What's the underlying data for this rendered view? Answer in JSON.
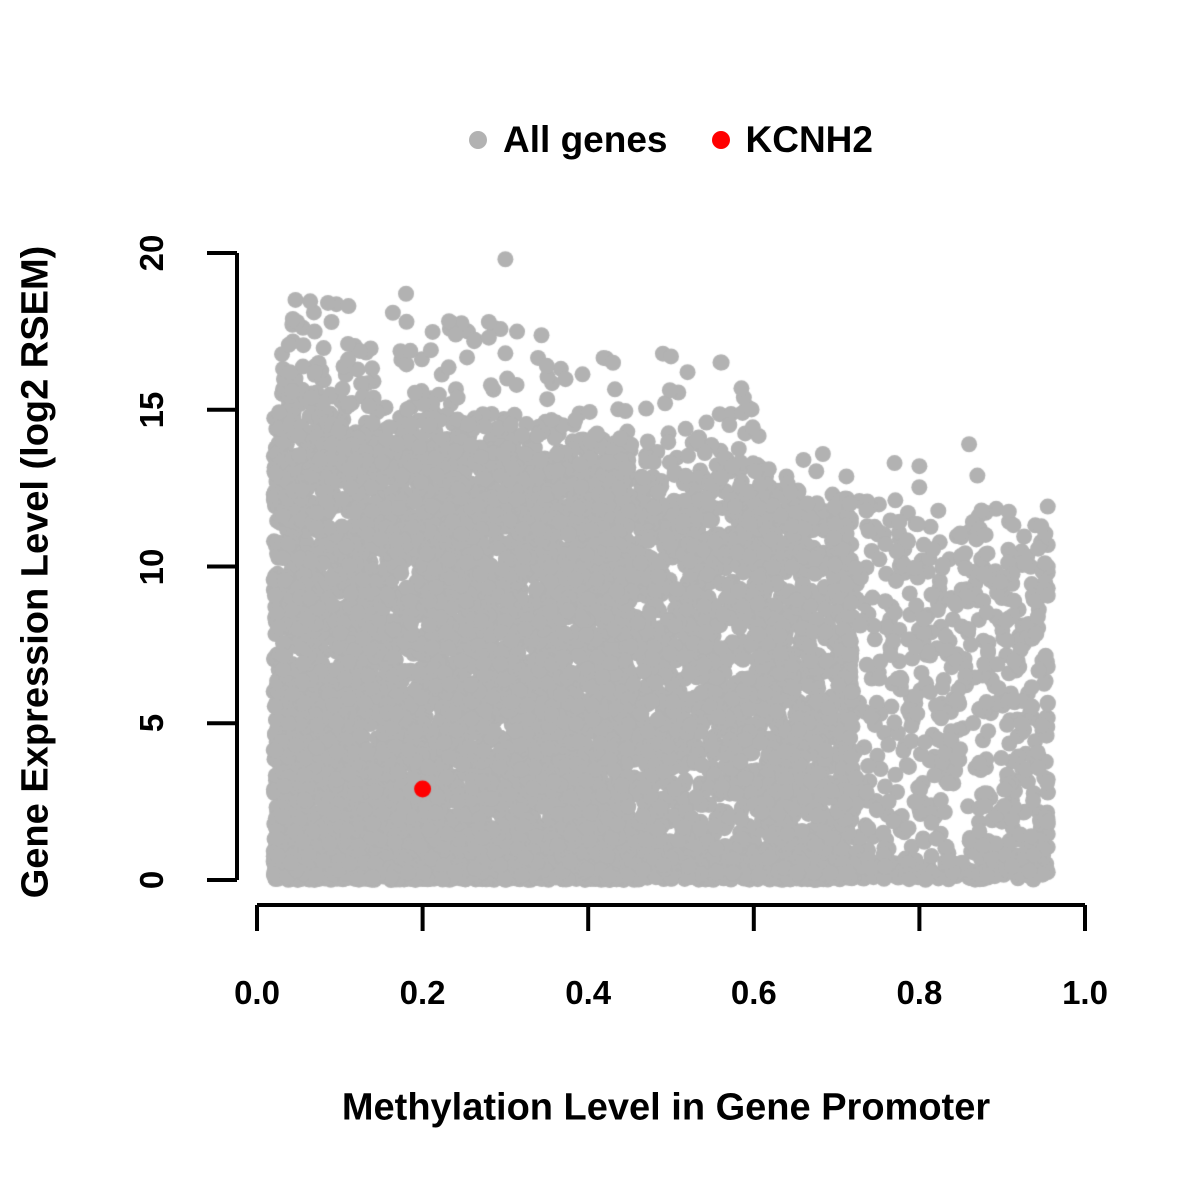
{
  "figure": {
    "background": "#ffffff",
    "legend": {
      "items": [
        {
          "label": "All genes",
          "color": "#b2b2b2"
        },
        {
          "label": "KCNH2",
          "color": "#ff0000"
        }
      ]
    }
  },
  "chart_data": {
    "type": "scatter",
    "title": "",
    "xlabel": "Methylation Level in Gene Promoter",
    "ylabel": "Gene Expression Level (log2 RSEM)",
    "xlim": [
      0,
      1
    ],
    "ylim": [
      0,
      20
    ],
    "x_ticks": [
      0.0,
      0.2,
      0.4,
      0.6,
      0.8,
      1.0
    ],
    "x_tick_labels": [
      "0.0",
      "0.2",
      "0.4",
      "0.6",
      "0.8",
      "1.0"
    ],
    "y_ticks": [
      0,
      5,
      10,
      15,
      20
    ],
    "y_tick_labels": [
      "0",
      "5",
      "10",
      "15",
      "20"
    ],
    "grid": false,
    "legend_position": "top-center",
    "point_radius_px": 8,
    "axis_color": "#000000",
    "seed": 1337,
    "series": [
      {
        "name": "All genes",
        "color": "#b2b2b2",
        "marker": "circle",
        "n_points": 8500,
        "distribution": {
          "comment": "dense wedge: expression upper envelope declines as promoter methylation rises; x spans 0.02-0.95, solid mass below envelope, extra band at y=0",
          "x_components": [
            {
              "weight": 0.64,
              "start": 0.02,
              "span": 0.43,
              "pow": 1.1
            },
            {
              "weight": 0.27,
              "start": 0.42,
              "span": 0.3,
              "pow": 1.0
            },
            {
              "weight": 0.09,
              "start": 0.7,
              "span": 0.26,
              "pow": 0.9
            }
          ],
          "envelope": {
            "intercept": 15.2,
            "slope": -4.0,
            "noise_sd": 0.45
          },
          "y_pow": 1.08,
          "bottom_fraction": 0.13,
          "bottom_sd": 0.4,
          "upper_band_fraction": 0.025,
          "upper_band": {
            "x_start": 0.03,
            "x_span": 0.58,
            "x_pow": 1.3,
            "offset": 0.25,
            "exp_scale": 1.1,
            "max_extra": 3.3
          }
        },
        "notable_points": [
          [
            0.3,
            19.8
          ],
          [
            0.18,
            18.7
          ],
          [
            0.09,
            17.8
          ],
          [
            0.28,
            17.8
          ],
          [
            0.24,
            17.4
          ],
          [
            0.28,
            17.3
          ],
          [
            0.11,
            17.1
          ],
          [
            0.11,
            16.6
          ],
          [
            0.21,
            16.9
          ],
          [
            0.3,
            16.8
          ],
          [
            0.5,
            16.7
          ],
          [
            0.43,
            16.5
          ],
          [
            0.35,
            16.4
          ],
          [
            0.52,
            16.2
          ],
          [
            0.04,
            16.2
          ],
          [
            0.66,
            13.4
          ],
          [
            0.77,
            13.3
          ],
          [
            0.86,
            13.9
          ],
          [
            0.87,
            12.9
          ],
          [
            0.8,
            13.2
          ]
        ]
      },
      {
        "name": "KCNH2",
        "color": "#ff0000",
        "marker": "circle",
        "point_radius_px": 8.5,
        "points": [
          [
            0.2,
            2.9
          ]
        ]
      }
    ]
  }
}
